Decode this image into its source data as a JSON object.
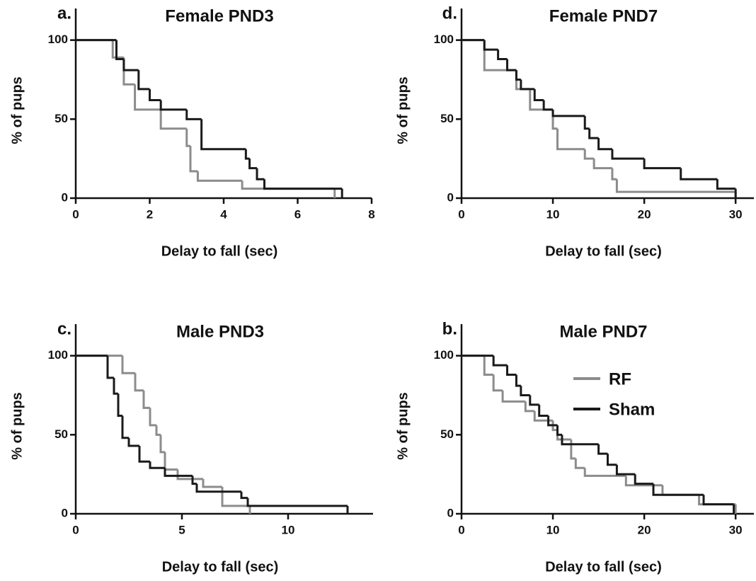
{
  "chart_data": [
    {
      "type": "step",
      "panel_label": "a.",
      "title": "Female PND3",
      "xlabel": "Delay to fall (sec)",
      "ylabel": "% of pups",
      "xlim": [
        0,
        8
      ],
      "ylim": [
        0,
        120
      ],
      "xticks": [
        0,
        2,
        4,
        6,
        8
      ],
      "yticks": [
        0,
        50,
        100
      ],
      "series": [
        {
          "color": "#8c8c8c",
          "x": [
            0,
            1.0,
            1.3,
            1.6,
            2.3,
            3.0,
            3.1,
            3.3,
            4.5,
            7.0
          ],
          "values": [
            100,
            89,
            72,
            56,
            44,
            33,
            17,
            11,
            6,
            0
          ]
        },
        {
          "color": "#1a1a1a",
          "x": [
            0,
            1.1,
            1.3,
            1.7,
            2.0,
            2.3,
            3.0,
            3.4,
            4.6,
            4.7,
            4.9,
            5.1,
            7.2
          ],
          "values": [
            100,
            88,
            81,
            69,
            62,
            56,
            50,
            31,
            25,
            19,
            12,
            6,
            0
          ]
        }
      ]
    },
    {
      "type": "step",
      "panel_label": "d.",
      "title": "Female PND7",
      "xlabel": "Delay to fall (sec)",
      "ylabel": "% of pups",
      "xlim": [
        0,
        32
      ],
      "ylim": [
        0,
        120
      ],
      "xticks": [
        0,
        10,
        20,
        30
      ],
      "yticks": [
        0,
        50,
        100
      ],
      "series": [
        {
          "color": "#8c8c8c",
          "x": [
            0,
            2.5,
            6.0,
            7.5,
            10.0,
            10.5,
            13.5,
            14.5,
            16.5,
            17.0,
            30.0
          ],
          "values": [
            100,
            81,
            69,
            56,
            44,
            31,
            25,
            19,
            12,
            4,
            0
          ]
        },
        {
          "color": "#1a1a1a",
          "x": [
            0,
            2.5,
            4.0,
            5.0,
            6.0,
            6.5,
            8.0,
            9.0,
            10.0,
            13.5,
            14.0,
            15.0,
            16.5,
            20.0,
            24.0,
            28.0,
            30.0
          ],
          "values": [
            100,
            94,
            88,
            81,
            75,
            69,
            62,
            56,
            52,
            44,
            38,
            31,
            25,
            19,
            12,
            6,
            0
          ]
        }
      ]
    },
    {
      "type": "step",
      "panel_label": "c.",
      "title": "Male PND3",
      "xlabel": "Delay to fall (sec)",
      "ylabel": "% of pups",
      "xlim": [
        0,
        14
      ],
      "ylim": [
        0,
        120
      ],
      "xticks": [
        0,
        5,
        10
      ],
      "yticks": [
        0,
        50,
        100
      ],
      "series": [
        {
          "color": "#8c8c8c",
          "x": [
            0,
            2.2,
            2.8,
            3.2,
            3.5,
            3.8,
            4.0,
            4.2,
            4.8,
            6.0,
            6.9,
            8.2
          ],
          "values": [
            100,
            89,
            78,
            67,
            56,
            50,
            39,
            28,
            22,
            17,
            5,
            0
          ]
        },
        {
          "color": "#1a1a1a",
          "x": [
            0,
            1.5,
            1.8,
            2.0,
            2.2,
            2.5,
            3.0,
            3.5,
            4.2,
            5.5,
            5.7,
            7.8,
            8.1,
            12.8
          ],
          "values": [
            100,
            86,
            76,
            62,
            48,
            43,
            33,
            29,
            24,
            19,
            14,
            10,
            5,
            0
          ]
        }
      ]
    },
    {
      "type": "step",
      "panel_label": "b.",
      "title": "Male PND7",
      "xlabel": "Delay to fall (sec)",
      "ylabel": "% of pups",
      "xlim": [
        0,
        32
      ],
      "ylim": [
        0,
        120
      ],
      "xticks": [
        0,
        10,
        20,
        30
      ],
      "yticks": [
        0,
        50,
        100
      ],
      "legend": "upper right",
      "series": [
        {
          "name": "RF",
          "color": "#8c8c8c",
          "x": [
            0,
            2.5,
            3.5,
            4.5,
            7.0,
            8.0,
            10.0,
            10.5,
            12.0,
            12.5,
            13.5,
            18.0,
            22.0,
            26.0,
            30.0
          ],
          "values": [
            100,
            88,
            78,
            71,
            65,
            59,
            53,
            47,
            35,
            29,
            24,
            18,
            12,
            6,
            0
          ]
        },
        {
          "name": "Sham",
          "color": "#1a1a1a",
          "x": [
            0,
            3.5,
            5.0,
            6.0,
            6.5,
            7.5,
            8.5,
            9.5,
            10.5,
            11.0,
            15.0,
            16.0,
            17.0,
            19.0,
            21.0,
            26.5,
            29.8
          ],
          "values": [
            100,
            94,
            88,
            81,
            75,
            69,
            62,
            56,
            50,
            44,
            38,
            31,
            25,
            19,
            12,
            6,
            0
          ]
        }
      ]
    }
  ]
}
